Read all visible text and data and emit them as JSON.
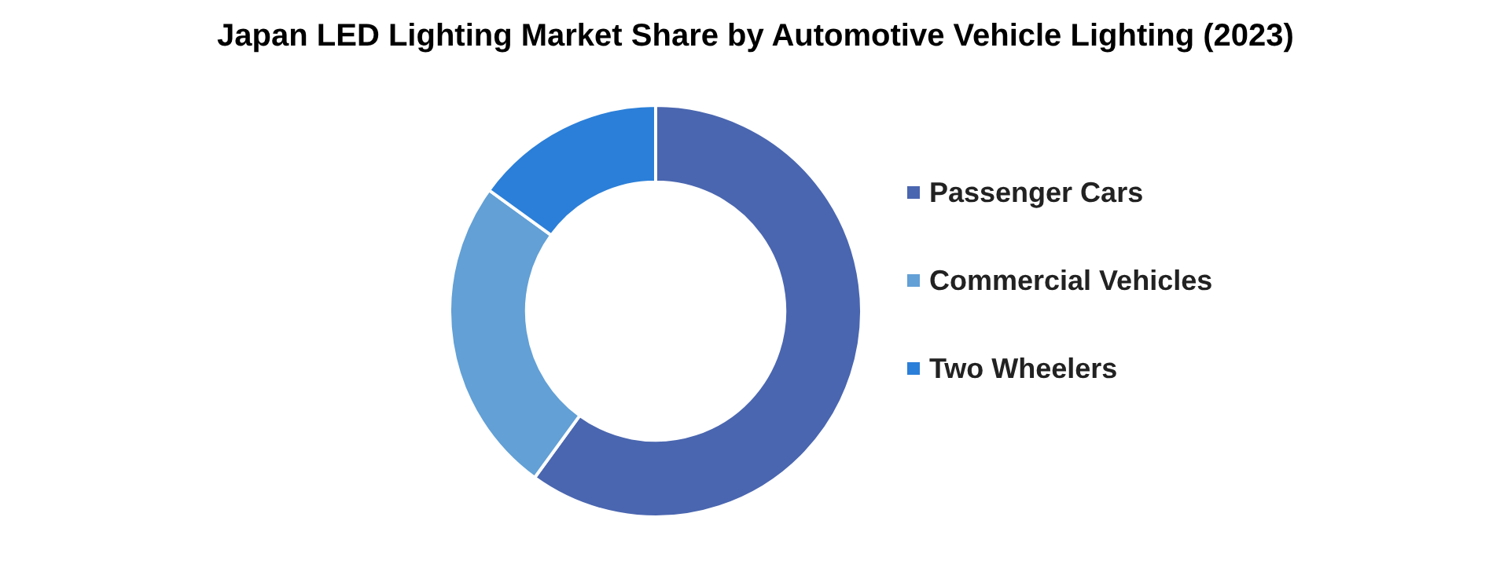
{
  "chart_data": {
    "type": "donut",
    "title": "Japan LED Lighting Market Share by Automotive Vehicle Lighting (2023)",
    "categories": [
      "Passenger Cars",
      "Commercial Vehicles",
      "Two Wheelers"
    ],
    "values": [
      60,
      25,
      15
    ],
    "colors": [
      "#4a66b0",
      "#62a0d6",
      "#2b7fd8"
    ],
    "legend": "right"
  }
}
